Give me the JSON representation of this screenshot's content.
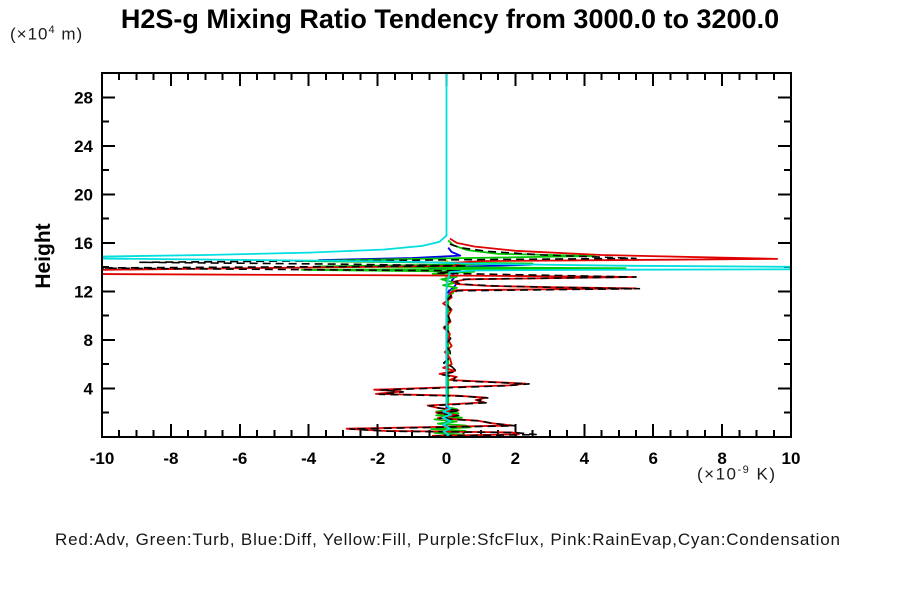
{
  "header": {
    "title": "H2S-g Mixing Ratio Tendency from 3000.0 to 3200.0"
  },
  "axes": {
    "ylabel": "Height",
    "y_unit_prefix": "(×10",
    "y_unit_sup": "4",
    "y_unit_suffix": " m)",
    "x_unit_prefix": "(×10",
    "x_unit_sup": "-9",
    "x_unit_suffix": " K)"
  },
  "legend": {
    "text": "Red:Adv, Green:Turb, Blue:Diff, Yellow:Fill, Purple:SfcFlux, Pink:RainEvap,Cyan:Condensation"
  },
  "chart_data": {
    "type": "line",
    "title": "H2S-g Mixing Ratio Tendency from 3000.0 to 3200.0",
    "xlabel": "(x10^-9 K)",
    "ylabel": "Height (x10^4 m)",
    "xlim": [
      -10,
      10
    ],
    "ylim": [
      0,
      30
    ],
    "grid": false,
    "legend_position": "bottom-caption",
    "x_major_ticks": [
      -10,
      -8,
      -6,
      -4,
      -2,
      0,
      2,
      4,
      6,
      8,
      10
    ],
    "x_tick_labels": [
      "-10",
      "-8",
      "-6",
      "-4",
      "-2",
      "0",
      "2",
      "4",
      "6",
      "8",
      "10"
    ],
    "x_minor_step": 0.5,
    "y_major_ticks": [
      4,
      8,
      12,
      16,
      20,
      24,
      28
    ],
    "y_tick_labels": [
      "4",
      "8",
      "12",
      "16",
      "20",
      "24",
      "28"
    ],
    "y_minor_step": 2,
    "series": [
      {
        "name": "Fill",
        "color": "#f0e000",
        "dash": null,
        "points": [
          [
            0.02,
            14.6
          ],
          [
            -0.02,
            14.2
          ],
          [
            0.02,
            13.8
          ],
          [
            0,
            13.4
          ],
          [
            0,
            0.05
          ]
        ]
      },
      {
        "name": "RainEvap",
        "color": "#ff69b4",
        "dash": null,
        "points": [
          [
            0.05,
            13.45
          ],
          [
            -0.05,
            13.0
          ],
          [
            0.05,
            12.55
          ],
          [
            0,
            12.2
          ],
          [
            0,
            0.04
          ]
        ]
      },
      {
        "name": "SfcFlux",
        "color": "#9932cc",
        "dash": null,
        "points": [
          [
            0.07,
            12.15
          ],
          [
            0.07,
            11.7
          ],
          [
            0,
            11.35
          ],
          [
            0,
            0.3
          ],
          [
            0.1,
            0.15
          ],
          [
            0,
            0.03
          ]
        ]
      },
      {
        "name": "Diff",
        "color": "#0000e6",
        "dash": null,
        "points": [
          [
            0.05,
            15.6
          ],
          [
            0.15,
            15.25
          ],
          [
            0.4,
            14.95
          ],
          [
            -1.0,
            14.75
          ],
          [
            -3.7,
            14.58
          ],
          [
            -1.6,
            14.45
          ],
          [
            0.9,
            14.32
          ],
          [
            2.45,
            14.2
          ],
          [
            0.6,
            14.05
          ],
          [
            -0.5,
            13.92
          ],
          [
            0.35,
            13.75
          ],
          [
            0.15,
            13.5
          ],
          [
            0.25,
            13.2
          ],
          [
            0.15,
            12.9
          ],
          [
            0.28,
            12.6
          ],
          [
            0.2,
            12.3
          ],
          [
            0.1,
            12.1
          ],
          [
            0,
            11.8
          ],
          [
            0,
            0.6
          ],
          [
            0.1,
            0.35
          ],
          [
            -0.08,
            0.18
          ],
          [
            0,
            0.02
          ]
        ]
      },
      {
        "name": "Turb",
        "color": "#00c800",
        "dash": null,
        "points": [
          [
            0.05,
            16.2
          ],
          [
            0.2,
            15.8
          ],
          [
            0.6,
            15.4
          ],
          [
            1.5,
            15.1
          ],
          [
            4.3,
            14.92
          ],
          [
            -0.5,
            14.7
          ],
          [
            -4.2,
            14.5
          ],
          [
            2.5,
            14.3
          ],
          [
            -3.8,
            14.05
          ],
          [
            5.2,
            13.9
          ],
          [
            -4.2,
            13.78
          ],
          [
            0.8,
            13.62
          ],
          [
            -0.4,
            13.45
          ],
          [
            0.3,
            13.2
          ],
          [
            -0.15,
            13.0
          ],
          [
            0.25,
            12.7
          ],
          [
            -0.1,
            12.5
          ],
          [
            0.3,
            12.3
          ],
          [
            0.15,
            12.1
          ],
          [
            0.2,
            11.9
          ],
          [
            0.05,
            11.6
          ],
          [
            0.05,
            2.45
          ],
          [
            0.3,
            2.3
          ],
          [
            -0.3,
            2.1
          ],
          [
            0.35,
            1.95
          ],
          [
            -0.3,
            1.78
          ],
          [
            0.45,
            1.6
          ],
          [
            -0.35,
            1.45
          ],
          [
            0.3,
            1.28
          ],
          [
            -0.25,
            1.1
          ],
          [
            0.55,
            0.95
          ],
          [
            0.7,
            0.8
          ],
          [
            -0.45,
            0.65
          ],
          [
            0.55,
            0.5
          ],
          [
            -0.35,
            0.35
          ],
          [
            0.5,
            0.2
          ],
          [
            -0.2,
            0.1
          ],
          [
            0,
            0.02
          ]
        ]
      },
      {
        "name": "Adv",
        "color": "#e00000",
        "dash": null,
        "points": [
          [
            0.1,
            16.35
          ],
          [
            0.3,
            16.0
          ],
          [
            0.8,
            15.7
          ],
          [
            2,
            15.35
          ],
          [
            4.5,
            15.0
          ],
          [
            9.6,
            14.68
          ],
          [
            1,
            14.5
          ],
          [
            0.2,
            14.35
          ],
          [
            0.4,
            14.1
          ],
          [
            -10.5,
            13.76
          ],
          [
            -10.5,
            13.43
          ],
          [
            0.5,
            13.3
          ],
          [
            5.5,
            13.19
          ],
          [
            0.6,
            13.0
          ],
          [
            0.2,
            12.8
          ],
          [
            0.3,
            12.6
          ],
          [
            1.2,
            12.45
          ],
          [
            3,
            12.35
          ],
          [
            5.5,
            12.25
          ],
          [
            0.3,
            12.1
          ],
          [
            0.1,
            11.9
          ],
          [
            0.15,
            11.5
          ],
          [
            -0.1,
            11.0
          ],
          [
            0.15,
            10.5
          ],
          [
            0.05,
            10.0
          ],
          [
            0.12,
            9.5
          ],
          [
            -0.08,
            9.0
          ],
          [
            0.1,
            8.5
          ],
          [
            0.05,
            8.0
          ],
          [
            0.15,
            7.5
          ],
          [
            -0.05,
            7.0
          ],
          [
            0.1,
            6.5
          ],
          [
            0.15,
            6.0
          ],
          [
            -0.1,
            5.7
          ],
          [
            0.25,
            5.45
          ],
          [
            -0.2,
            5.2
          ],
          [
            0.3,
            4.95
          ],
          [
            0.1,
            4.7
          ],
          [
            2.3,
            4.4
          ],
          [
            1.8,
            4.25
          ],
          [
            -0.5,
            4.05
          ],
          [
            -2.1,
            3.9
          ],
          [
            -1.3,
            3.75
          ],
          [
            -2.05,
            3.55
          ],
          [
            0.3,
            3.4
          ],
          [
            1.15,
            3.25
          ],
          [
            0.85,
            3.05
          ],
          [
            1.1,
            2.85
          ],
          [
            -0.55,
            2.6
          ],
          [
            -0.25,
            2.4
          ],
          [
            0.35,
            2.2
          ],
          [
            -0.3,
            2.0
          ],
          [
            0.3,
            1.8
          ],
          [
            -0.25,
            1.55
          ],
          [
            0.9,
            1.35
          ],
          [
            1.25,
            1.15
          ],
          [
            1.9,
            0.95
          ],
          [
            -2.9,
            0.68
          ],
          [
            -1.8,
            0.5
          ],
          [
            1.9,
            0.38
          ],
          [
            2.1,
            0.22
          ],
          [
            -0.4,
            0.1
          ],
          [
            0,
            0.02
          ]
        ]
      },
      {
        "name": "Total",
        "color": "#000000",
        "dash": "8,5",
        "points": [
          [
            0.1,
            15.9
          ],
          [
            0.4,
            15.6
          ],
          [
            1.2,
            15.3
          ],
          [
            2.8,
            15.0
          ],
          [
            5.5,
            14.72
          ],
          [
            -8.9,
            14.4
          ],
          [
            -3.2,
            14.25
          ],
          [
            0.6,
            14.1
          ],
          [
            -10.5,
            13.93
          ],
          [
            0.4,
            13.7
          ],
          [
            -0.3,
            13.5
          ],
          [
            5.5,
            13.19
          ],
          [
            0.5,
            13.0
          ],
          [
            0.25,
            12.8
          ],
          [
            0.4,
            12.6
          ],
          [
            1.4,
            12.45
          ],
          [
            3.2,
            12.33
          ],
          [
            5.6,
            12.22
          ],
          [
            0.3,
            12.05
          ],
          [
            0.12,
            11.6
          ],
          [
            -0.05,
            11.1
          ],
          [
            0.12,
            10.6
          ],
          [
            0.04,
            10.1
          ],
          [
            0.1,
            9.6
          ],
          [
            -0.06,
            9.1
          ],
          [
            0.08,
            8.6
          ],
          [
            0.12,
            8.1
          ],
          [
            -0.04,
            7.6
          ],
          [
            0.1,
            7.1
          ],
          [
            0.12,
            6.6
          ],
          [
            -0.08,
            6.1
          ],
          [
            0.15,
            5.8
          ],
          [
            0.3,
            5.4
          ],
          [
            -0.15,
            5.15
          ],
          [
            0.25,
            4.9
          ],
          [
            0.2,
            4.65
          ],
          [
            2.4,
            4.38
          ],
          [
            1.7,
            4.22
          ],
          [
            -0.6,
            4.0
          ],
          [
            -1.9,
            3.87
          ],
          [
            -1.25,
            3.72
          ],
          [
            -1.95,
            3.52
          ],
          [
            0.4,
            3.37
          ],
          [
            1.2,
            3.22
          ],
          [
            0.9,
            3.02
          ],
          [
            1.15,
            2.82
          ],
          [
            -0.5,
            2.57
          ],
          [
            -0.2,
            2.37
          ],
          [
            0.4,
            2.17
          ],
          [
            -0.25,
            1.97
          ],
          [
            0.35,
            1.77
          ],
          [
            -0.2,
            1.52
          ],
          [
            1.0,
            1.32
          ],
          [
            1.35,
            1.12
          ],
          [
            2.0,
            0.92
          ],
          [
            -2.8,
            0.66
          ],
          [
            -1.7,
            0.48
          ],
          [
            2.0,
            0.36
          ],
          [
            2.6,
            0.2
          ],
          [
            -0.3,
            0.08
          ],
          [
            0,
            0.01
          ]
        ]
      },
      {
        "name": "Condensation",
        "color": "#00dede",
        "dash": null,
        "points": [
          [
            0,
            30
          ],
          [
            0,
            16.6
          ],
          [
            -0.2,
            16.1
          ],
          [
            -0.7,
            15.75
          ],
          [
            -1.8,
            15.45
          ],
          [
            -4,
            15.2
          ],
          [
            -7,
            15.0
          ],
          [
            -10.4,
            14.85
          ],
          [
            -10.4,
            14.72
          ],
          [
            -6,
            14.6
          ],
          [
            -2.5,
            14.5
          ],
          [
            -0.8,
            14.42
          ],
          [
            -0.15,
            14.35
          ],
          [
            1.5,
            14.25
          ],
          [
            5,
            14.12
          ],
          [
            10.4,
            14.02
          ],
          [
            10.4,
            13.82
          ],
          [
            4,
            13.78
          ],
          [
            0.8,
            13.72
          ],
          [
            0.1,
            13.6
          ],
          [
            0.05,
            13.0
          ],
          [
            0,
            12.4
          ],
          [
            0,
            2.6
          ],
          [
            0.12,
            2.35
          ],
          [
            -0.1,
            2.1
          ],
          [
            0.14,
            1.85
          ],
          [
            -0.12,
            1.6
          ],
          [
            0.12,
            1.3
          ],
          [
            -0.1,
            1.0
          ],
          [
            0.1,
            0.7
          ],
          [
            -0.08,
            0.45
          ],
          [
            0.06,
            0.2
          ],
          [
            0,
            0.02
          ]
        ]
      }
    ]
  }
}
